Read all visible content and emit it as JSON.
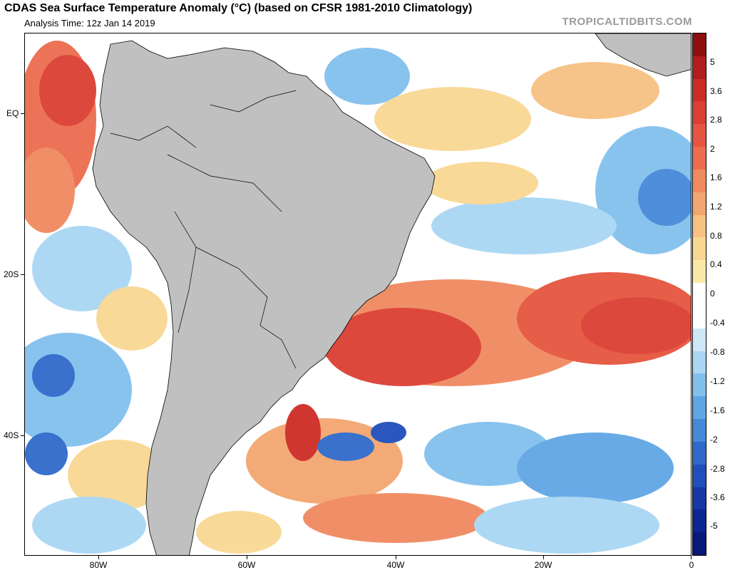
{
  "header": {
    "title": "CDAS Sea Surface Temperature Anomaly (°C) (based on CFSR 1981-2010 Climatology)",
    "analysis_time": "Analysis Time: 12z Jan 14 2019",
    "brand": "TROPICALTIDBITS.COM"
  },
  "map": {
    "lat_labels": [
      "EQ",
      "20S",
      "40S"
    ],
    "lon_labels": [
      "80W",
      "60W",
      "40W",
      "20W",
      "0"
    ],
    "land_color": "#c0c0c0"
  },
  "colorbar": {
    "labels": [
      "5",
      "3.6",
      "2.8",
      "2",
      "1.6",
      "1.2",
      "0.8",
      "0.4",
      "0",
      "-0.4",
      "-0.8",
      "-1.2",
      "-1.6",
      "-2",
      "-2.8",
      "-3.6",
      "-5"
    ],
    "colors": [
      "#8e0f0f",
      "#b21e1e",
      "#cd2c25",
      "#dc3f33",
      "#e5553f",
      "#ec6c4f",
      "#f08a5f",
      "#f3a66f",
      "#f6c182",
      "#f9d893",
      "#fbeaa6",
      "#ffffff",
      "#ffffff",
      "#cfe8f8",
      "#a9d6f3",
      "#82c0ee",
      "#5fa6e5",
      "#4689d9",
      "#2f6acb",
      "#1f4fbb",
      "#1538a6",
      "#0c2590",
      "#061879"
    ]
  }
}
